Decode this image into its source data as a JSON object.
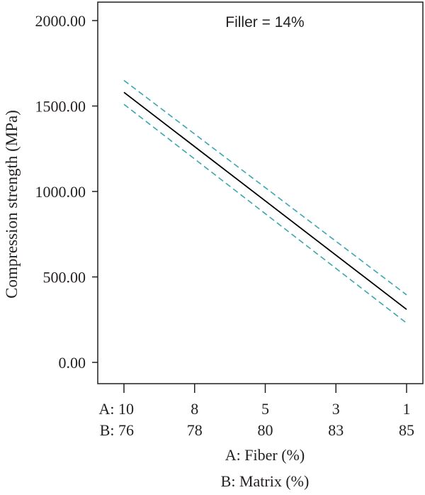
{
  "chart_data": {
    "type": "line",
    "annotation": "Filler = 14%",
    "ylabel": "Compression strength (MPa)",
    "xlabel_lines": [
      "A: Fiber (%)",
      "B: Matrix (%)"
    ],
    "ylim": [
      0,
      2000
    ],
    "yticks": [
      {
        "value": 0,
        "label": "0.00"
      },
      {
        "value": 500,
        "label": "500.00"
      },
      {
        "value": 1000,
        "label": "1000.00"
      },
      {
        "value": 1500,
        "label": "1500.00"
      },
      {
        "value": 2000,
        "label": "2000.00"
      }
    ],
    "x_ticks": [
      {
        "position": 0.0,
        "label_a": "A: 10",
        "label_b": "B: 76"
      },
      {
        "position": 0.25,
        "label_a": "8",
        "label_b": "78"
      },
      {
        "position": 0.5,
        "label_a": "5",
        "label_b": "80"
      },
      {
        "position": 0.75,
        "label_a": "3",
        "label_b": "83"
      },
      {
        "position": 1.0,
        "label_a": "1",
        "label_b": "85"
      }
    ],
    "series": [
      {
        "role": "prediction",
        "color": "#000000",
        "dashed": false,
        "points": [
          {
            "t": 0,
            "y": 1580
          },
          {
            "t": 1,
            "y": 310
          }
        ]
      },
      {
        "role": "upper-bound",
        "color": "#3aa6b0",
        "dashed": true,
        "points": [
          {
            "t": 0,
            "y": 1650
          },
          {
            "t": 1,
            "y": 395
          }
        ]
      },
      {
        "role": "lower-bound",
        "color": "#3aa6b0",
        "dashed": true,
        "points": [
          {
            "t": 0,
            "y": 1510
          },
          {
            "t": 1,
            "y": 230
          }
        ]
      }
    ]
  }
}
